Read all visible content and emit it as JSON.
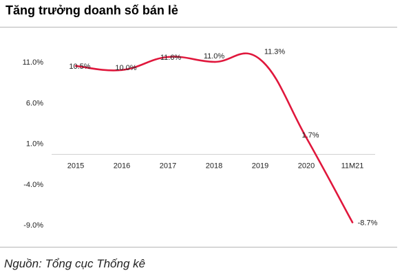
{
  "chart_data": {
    "type": "line",
    "title": "Tăng trưởng doanh số bán lẻ",
    "categories": [
      "2015",
      "2016",
      "2017",
      "2018",
      "2019",
      "2020",
      "11M21"
    ],
    "series": [
      {
        "values": [
          10.5,
          10.0,
          11.6,
          11.0,
          11.3,
          1.7,
          -8.7
        ],
        "labels": [
          "10.5%",
          "10.0%",
          "11.6%",
          "11.0%",
          "11.3%",
          "1.7%",
          "-8.7%"
        ]
      }
    ],
    "y_ticks": [
      11,
      6,
      1,
      -4,
      -9
    ],
    "y_tick_labels": [
      "11.0%",
      "6.0%",
      "1.0%",
      "-4.0%",
      "-9.0%"
    ],
    "ylim": [
      -9,
      11
    ],
    "xlabel": "",
    "ylabel": "",
    "grid": false,
    "legend": "none",
    "line_color": "#e0173c"
  },
  "source": "Nguồn: Tổng cục Thống kê"
}
